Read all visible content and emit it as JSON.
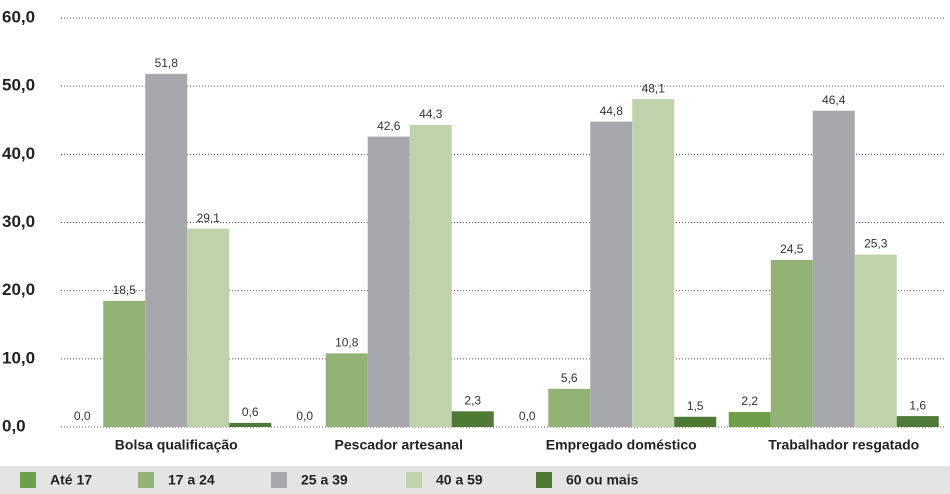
{
  "chart_data": {
    "type": "bar",
    "categories": [
      "Bolsa qualificação",
      "Pescador artesanal",
      "Empregado doméstico",
      "Trabalhador resgatado"
    ],
    "series": [
      {
        "name": "Até 17",
        "color": "#6f9e4a",
        "values": [
          0.0,
          0.0,
          0.0,
          2.2
        ],
        "value_labels": [
          "0,0",
          "0,0",
          "0,0",
          "2,2"
        ]
      },
      {
        "name": "17 a 24",
        "color": "#93b276",
        "values": [
          18.5,
          10.8,
          5.6,
          24.5
        ],
        "value_labels": [
          "18,5",
          "10,8",
          "5,6",
          "24,5"
        ]
      },
      {
        "name": "25 a 39",
        "color": "#a7a8ad",
        "values": [
          51.8,
          42.6,
          44.8,
          46.4
        ],
        "value_labels": [
          "51,8",
          "42,6",
          "44,8",
          "46,4"
        ]
      },
      {
        "name": "40 a 59",
        "color": "#bfd2ab",
        "values": [
          29.1,
          44.3,
          48.1,
          25.3
        ],
        "value_labels": [
          "29,1",
          "44,3",
          "48,1",
          "25,3"
        ]
      },
      {
        "name": "60 ou mais",
        "color": "#4f7a35",
        "values": [
          0.6,
          2.3,
          1.5,
          1.6
        ],
        "value_labels": [
          "0,6",
          "2,3",
          "1,5",
          "1,6"
        ]
      }
    ],
    "ylim": [
      0,
      60
    ],
    "yticks": [
      {
        "value": 0,
        "label": "0,0"
      },
      {
        "value": 10,
        "label": "10,0"
      },
      {
        "value": 20,
        "label": "20,0"
      },
      {
        "value": 30,
        "label": "30,0"
      },
      {
        "value": 40,
        "label": "40,0"
      },
      {
        "value": 50,
        "label": "50,0"
      },
      {
        "value": 60,
        "label": "60,0"
      }
    ],
    "grid": true,
    "legend": "bottom"
  }
}
